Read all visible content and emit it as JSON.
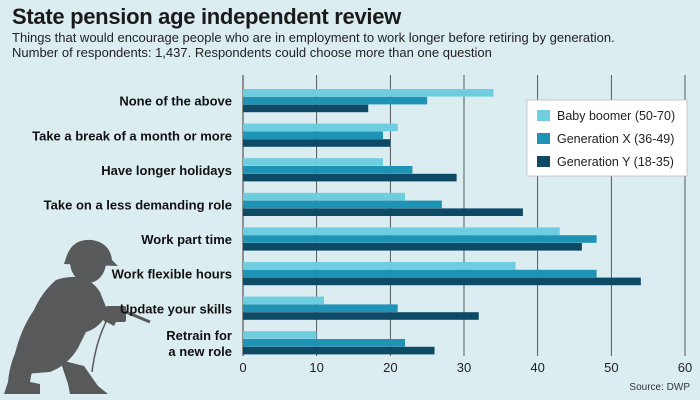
{
  "chart_data": {
    "type": "bar",
    "orientation": "horizontal",
    "title": "State pension age independent review",
    "subtitle_lines": [
      "Things that would encourage people who are in employment to work longer before retiring by generation.",
      "Number of respondents: 1,437. Respondents could choose more than one question"
    ],
    "categories": [
      [
        "None of the above"
      ],
      [
        "Take a break of a month or more"
      ],
      [
        "Have longer holidays"
      ],
      [
        "Take on a less demanding role"
      ],
      [
        "Work part time"
      ],
      [
        "Work flexible hours"
      ],
      [
        "Update your skills"
      ],
      [
        "Retrain for",
        "a new role"
      ]
    ],
    "series": [
      {
        "name": "Baby boomer (50-70)",
        "color": "#6fcde0",
        "values": [
          34,
          21,
          19,
          22,
          43,
          37,
          11,
          10
        ]
      },
      {
        "name": "Generation X (36-49)",
        "color": "#1f93b5",
        "values": [
          25,
          19,
          23,
          27,
          48,
          48,
          21,
          22
        ]
      },
      {
        "name": "Generation Y (18-35)",
        "color": "#0c4a66",
        "values": [
          17,
          20,
          29,
          38,
          46,
          54,
          32,
          26
        ]
      }
    ],
    "xlim": [
      0,
      60
    ],
    "xticks": [
      0,
      10,
      20,
      30,
      40,
      50,
      60
    ],
    "grid": true,
    "legend_position": "top-right",
    "source": "Source: DWP"
  }
}
